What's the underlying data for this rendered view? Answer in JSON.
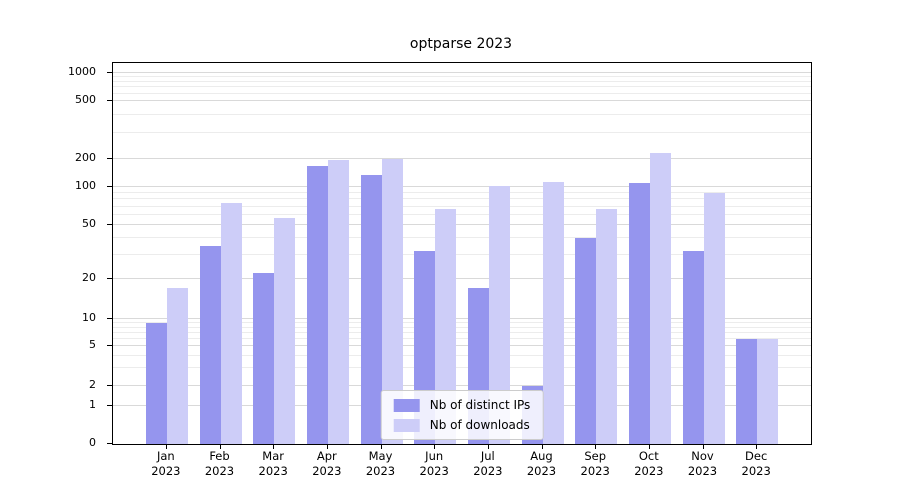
{
  "title": "optparse 2023",
  "chart_data": {
    "type": "bar",
    "categories": [
      "Jan",
      "Feb",
      "Mar",
      "Apr",
      "May",
      "Jun",
      "Jul",
      "Aug",
      "Sep",
      "Oct",
      "Nov",
      "Dec"
    ],
    "year_label": "2023",
    "series": [
      {
        "name": "Nb of distinct IPs",
        "color": "#9595ee",
        "values": [
          9,
          35,
          22,
          168,
          135,
          32,
          17,
          2,
          40,
          110,
          32,
          6
        ]
      },
      {
        "name": "Nb of downloads",
        "color": "#cdcdf8",
        "values": [
          17,
          75,
          57,
          197,
          200,
          67,
          102,
          113,
          67,
          220,
          90,
          6
        ]
      }
    ],
    "yticks": [
      0,
      1,
      2,
      5,
      10,
      20,
      50,
      100,
      200,
      500,
      1000
    ],
    "ylim": [
      0,
      1000
    ],
    "scale": "symlog",
    "grid": true,
    "legend_position": "lower center"
  }
}
